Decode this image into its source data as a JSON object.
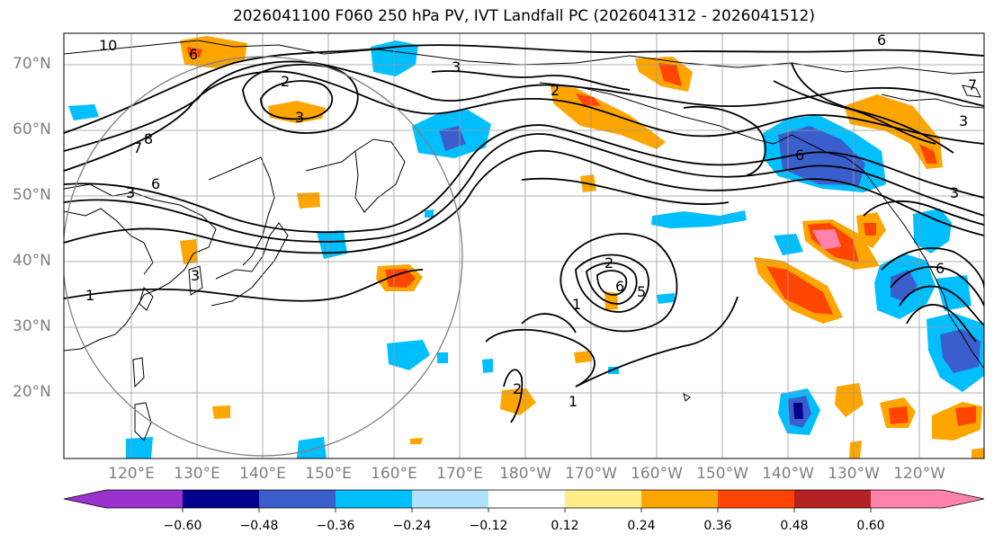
{
  "title": "2026041100 F060 250 hPa PV, IVT Landfall PC (2026041312 - 2026041512)",
  "map": {
    "lat_labels": [
      "70°N",
      "60°N",
      "50°N",
      "40°N",
      "30°N",
      "20°N"
    ],
    "lon_labels": [
      "120°E",
      "130°E",
      "140°E",
      "150°E",
      "160°E",
      "170°E",
      "180°W",
      "170°W",
      "160°W",
      "150°W",
      "140°W",
      "130°W",
      "120°W"
    ],
    "contour_labels": [
      "10",
      "6",
      "2",
      "3",
      "2",
      "8",
      "7",
      "6",
      "3",
      "3",
      "1",
      "3",
      "2",
      "6",
      "5",
      "1",
      "2",
      "1",
      "7",
      "6",
      "3",
      "6",
      "6",
      "3"
    ]
  },
  "colorbar": {
    "ticks": [
      "−0.60",
      "−0.48",
      "−0.36",
      "−0.24",
      "−0.12",
      "0.12",
      "0.24",
      "0.36",
      "0.48",
      "0.60"
    ],
    "colors": [
      "#9a32cd",
      "#00008b",
      "#3a5fcd",
      "#00bfff",
      "#b0e2ff",
      "#ffffff",
      "#ffec8b",
      "#ffa500",
      "#ff4500",
      "#b22222",
      "#ff82ab"
    ]
  }
}
